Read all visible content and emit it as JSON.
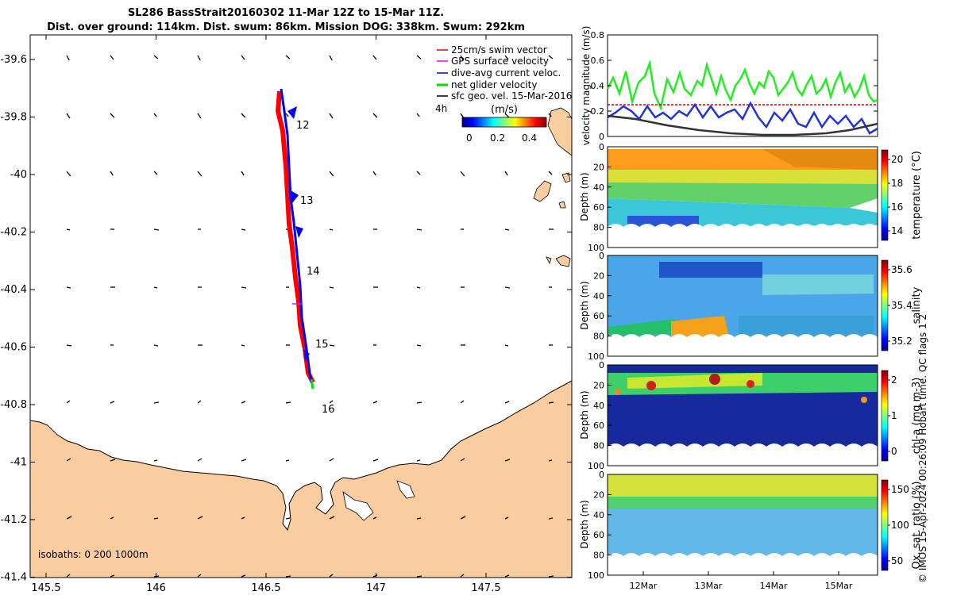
{
  "title": {
    "line1": "SL286 BassStrait20160302 11-Mar 12Z to 15-Mar 11Z.",
    "line2": "Dist. over ground: 114km. Dist. swum: 86km. Mission DOG: 338km. Swum: 292km"
  },
  "map": {
    "lat_ticks": [
      "-39.6",
      "-39.8",
      "-40",
      "-40.2",
      "-40.4",
      "-40.6",
      "-40.8",
      "-41",
      "-41.2",
      "-41.4"
    ],
    "lon_ticks": [
      "145.5",
      "146",
      "146.5",
      "147",
      "147.5"
    ],
    "day_labels": [
      "12",
      "13",
      "14",
      "15",
      "16"
    ],
    "isobaths_text": "isobaths: 0   200  1000m",
    "legend": [
      {
        "label": "25cm/s swim vector",
        "color": "#ff0000"
      },
      {
        "label": "GPS surface velocity",
        "color": "#ff00ff"
      },
      {
        "label": "dive-avg current veloc.",
        "color": "#0000ff"
      },
      {
        "label": "net glider velocity",
        "color": "#00dd00"
      },
      {
        "label": "sfc geo. vel. 15-Mar-2016",
        "color": "#000000"
      }
    ],
    "legend_suffix": "4h",
    "colorbar": {
      "title": "(m/s)",
      "ticks": [
        "0",
        "0.2",
        "0.4"
      ]
    },
    "colors": {
      "land": "#f9cda0",
      "track": "#0000ff",
      "swim": "#ff0000"
    }
  },
  "velocity_panel": {
    "ylabel": "velocity magnitude (m/s)",
    "y_ticks": [
      "0",
      "0.2",
      "0.4",
      "0.6",
      "0.8"
    ],
    "ylim": [
      0,
      0.8
    ]
  },
  "sections": [
    {
      "cb_label": "temperature (°C)",
      "cb_ticks": [
        "14",
        "16",
        "18",
        "20"
      ],
      "ylabel": "Depth (m)"
    },
    {
      "cb_label": "salinity",
      "cb_ticks": [
        "35.2",
        "35.4",
        "35.6"
      ],
      "ylabel": "Depth (m)"
    },
    {
      "cb_label": "chl-a (mg m-3)",
      "cb_ticks": [
        "0",
        "1",
        "2"
      ],
      "ylabel": "Depth (m)"
    },
    {
      "cb_label": "Ox. sat. ratio (%)",
      "cb_ticks": [
        "50",
        "100",
        "150"
      ],
      "ylabel": "Depth (m)"
    }
  ],
  "depth_ticks": [
    "0",
    "20",
    "40",
    "60",
    "80",
    "100"
  ],
  "time_ticks": [
    "12Mar",
    "13Mar",
    "14Mar",
    "15Mar"
  ],
  "side_label": "© IMOS 15-Apr-2024 00:26:09 Hobart time. QC flags 1  2"
}
